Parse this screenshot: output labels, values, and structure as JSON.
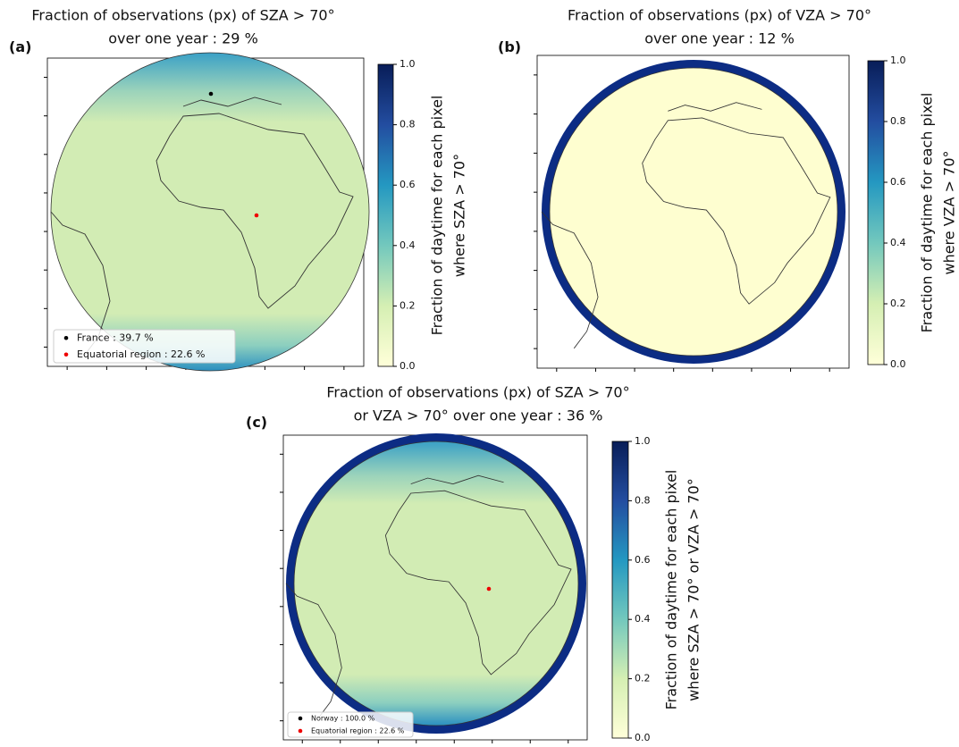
{
  "chart_data": [
    {
      "type": "map",
      "panel": "(a)",
      "title": [
        "Fraction of observations (px) of SZA > 70°",
        "over one year : 29 %"
      ],
      "colorbar_label": [
        "Fraction of daytime for each pixel",
        "where SZA > 70°"
      ],
      "clim": [
        0,
        1
      ],
      "cticks": [
        {
          "value": 0,
          "label": "0.0"
        },
        {
          "value": 0.2,
          "label": "0.2"
        },
        {
          "value": 0.4,
          "label": "0.4"
        },
        {
          "value": 0.6,
          "label": "0.6"
        },
        {
          "value": 0.8,
          "label": "0.8"
        },
        {
          "value": 1,
          "label": "1.0"
        }
      ],
      "legend": [
        "France : 39.7 %",
        "Equatorial region : 22.6 %"
      ]
    },
    {
      "type": "map",
      "panel": "(b)",
      "title": [
        "Fraction of observations (px) of VZA > 70°",
        "over one year : 12 %"
      ],
      "colorbar_label": [
        "Fraction of daytime for each pixel",
        "where VZA > 70°"
      ],
      "clim": [
        0,
        1
      ],
      "cticks": [
        {
          "value": 0,
          "label": "0.0"
        },
        {
          "value": 0.2,
          "label": "0.2"
        },
        {
          "value": 0.4,
          "label": "0.4"
        },
        {
          "value": 0.6,
          "label": "0.6"
        },
        {
          "value": 0.8,
          "label": "0.8"
        },
        {
          "value": 1,
          "label": "1.0"
        }
      ]
    },
    {
      "type": "map",
      "panel": "(c)",
      "title": [
        "Fraction of observations (px) of SZA > 70°",
        "or VZA > 70° over one year : 36 %"
      ],
      "colorbar_label": [
        "Fraction of daytime for each pixel",
        "where SZA > 70° or VZA > 70°"
      ],
      "clim": [
        0,
        1
      ],
      "cticks": [
        {
          "value": 0,
          "label": "0.0"
        },
        {
          "value": 0.2,
          "label": "0.2"
        },
        {
          "value": 0.4,
          "label": "0.4"
        },
        {
          "value": 0.6,
          "label": "0.6"
        },
        {
          "value": 0.8,
          "label": "0.8"
        },
        {
          "value": 1,
          "label": "1.0"
        }
      ],
      "legend": [
        "Norway : 100.0 %",
        "Equatorial region : 22.6 %"
      ]
    }
  ]
}
